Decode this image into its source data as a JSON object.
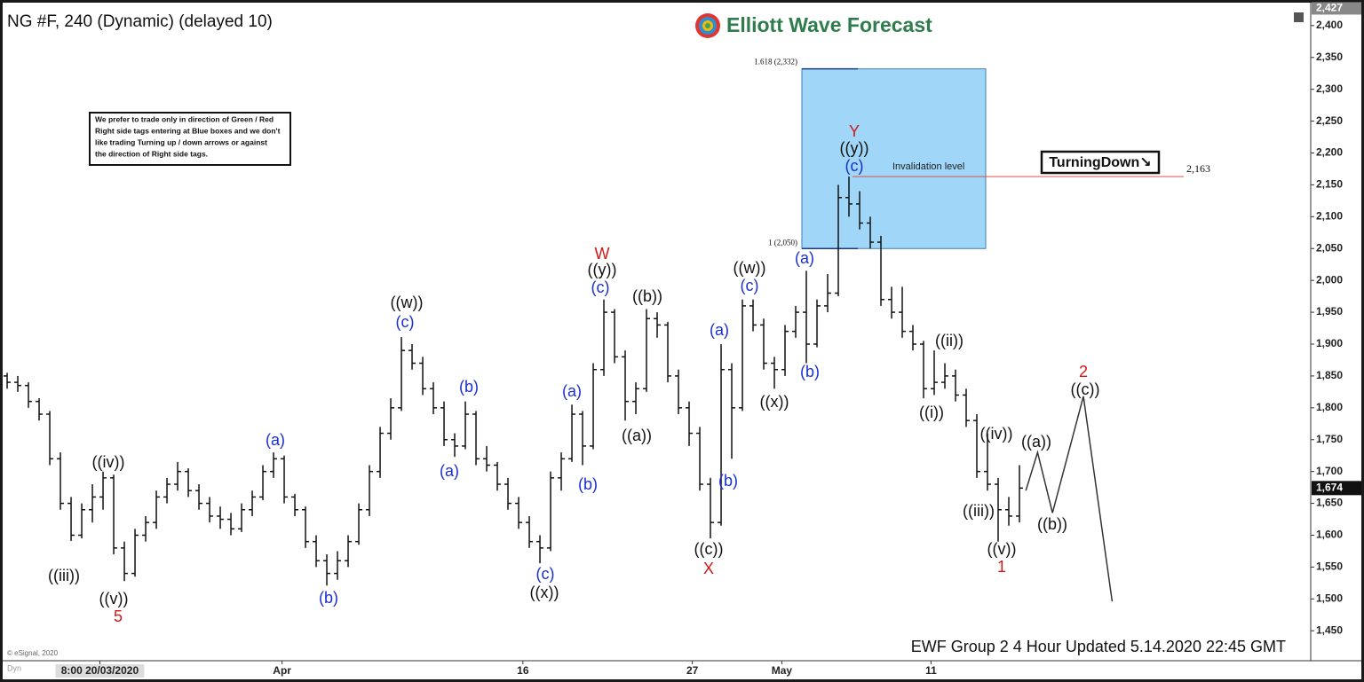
{
  "chart_data": {
    "type": "ohlc",
    "title": "NG #F, 240 (Dynamic) (delayed 10)",
    "brand": "Elliott Wave Forecast",
    "footer": "EWF Group 2 4 Hour Updated 5.14.2020 22:45 GMT",
    "copyright": "© eSignal, 2020",
    "corner_label": "Dyn",
    "note": [
      "We prefer to trade only in direction of Green / Red",
      "Right side tags entering at Blue boxes and we don't",
      "like trading Turning up / down arrows or against",
      "the direction of Right side tags."
    ],
    "bar_color": "#111111",
    "ohlc": [
      [
        1850,
        1855,
        1830,
        1840
      ],
      [
        1840,
        1850,
        1825,
        1835
      ],
      [
        1835,
        1840,
        1800,
        1810
      ],
      [
        1810,
        1815,
        1780,
        1790
      ],
      [
        1790,
        1795,
        1710,
        1720
      ],
      [
        1720,
        1730,
        1640,
        1650
      ],
      [
        1650,
        1660,
        1591,
        1600
      ],
      [
        1600,
        1650,
        1595,
        1640
      ],
      [
        1640,
        1680,
        1620,
        1660
      ],
      [
        1660,
        1700,
        1640,
        1690
      ],
      [
        1690,
        1695,
        1570,
        1580
      ],
      [
        1580,
        1590,
        1528,
        1540
      ],
      [
        1540,
        1610,
        1535,
        1600
      ],
      [
        1600,
        1630,
        1590,
        1620
      ],
      [
        1620,
        1670,
        1610,
        1660
      ],
      [
        1660,
        1690,
        1650,
        1680
      ],
      [
        1680,
        1715,
        1670,
        1700
      ],
      [
        1700,
        1705,
        1660,
        1670
      ],
      [
        1670,
        1680,
        1640,
        1650
      ],
      [
        1650,
        1660,
        1620,
        1630
      ],
      [
        1630,
        1645,
        1610,
        1625
      ],
      [
        1625,
        1635,
        1600,
        1610
      ],
      [
        1610,
        1650,
        1605,
        1640
      ],
      [
        1640,
        1670,
        1630,
        1660
      ],
      [
        1660,
        1710,
        1655,
        1700
      ],
      [
        1700,
        1730,
        1690,
        1720
      ],
      [
        1720,
        1725,
        1650,
        1660
      ],
      [
        1660,
        1665,
        1630,
        1640
      ],
      [
        1640,
        1645,
        1580,
        1590
      ],
      [
        1590,
        1600,
        1550,
        1560
      ],
      [
        1560,
        1570,
        1521,
        1540
      ],
      [
        1540,
        1575,
        1530,
        1560
      ],
      [
        1560,
        1600,
        1550,
        1590
      ],
      [
        1590,
        1650,
        1585,
        1640
      ],
      [
        1640,
        1710,
        1630,
        1700
      ],
      [
        1700,
        1770,
        1690,
        1760
      ],
      [
        1760,
        1815,
        1750,
        1800
      ],
      [
        1800,
        1911,
        1795,
        1890
      ],
      [
        1890,
        1900,
        1860,
        1870
      ],
      [
        1870,
        1880,
        1820,
        1830
      ],
      [
        1830,
        1840,
        1790,
        1800
      ],
      [
        1800,
        1810,
        1740,
        1750
      ],
      [
        1750,
        1760,
        1723,
        1740
      ],
      [
        1740,
        1810,
        1735,
        1790
      ],
      [
        1790,
        1795,
        1710,
        1720
      ],
      [
        1720,
        1740,
        1700,
        1710
      ],
      [
        1710,
        1715,
        1670,
        1680
      ],
      [
        1680,
        1690,
        1640,
        1650
      ],
      [
        1650,
        1660,
        1610,
        1620
      ],
      [
        1620,
        1630,
        1580,
        1590
      ],
      [
        1590,
        1600,
        1556,
        1580
      ],
      [
        1580,
        1700,
        1575,
        1690
      ],
      [
        1690,
        1730,
        1670,
        1720
      ],
      [
        1720,
        1805,
        1715,
        1790
      ],
      [
        1790,
        1795,
        1710,
        1740
      ],
      [
        1740,
        1870,
        1735,
        1860
      ],
      [
        1860,
        1970,
        1850,
        1950
      ],
      [
        1950,
        1955,
        1870,
        1880
      ],
      [
        1880,
        1890,
        1780,
        1810
      ],
      [
        1810,
        1840,
        1790,
        1830
      ],
      [
        1830,
        1955,
        1825,
        1940
      ],
      [
        1940,
        1950,
        1910,
        1930
      ],
      [
        1930,
        1935,
        1840,
        1850
      ],
      [
        1850,
        1860,
        1790,
        1800
      ],
      [
        1800,
        1810,
        1740,
        1760
      ],
      [
        1760,
        1770,
        1670,
        1680
      ],
      [
        1680,
        1690,
        1595,
        1620
      ],
      [
        1620,
        1900,
        1615,
        1860
      ],
      [
        1860,
        1870,
        1720,
        1800
      ],
      [
        1800,
        1970,
        1795,
        1960
      ],
      [
        1960,
        1970,
        1920,
        1930
      ],
      [
        1930,
        1940,
        1860,
        1870
      ],
      [
        1870,
        1880,
        1830,
        1860
      ],
      [
        1860,
        1930,
        1850,
        1920
      ],
      [
        1920,
        1960,
        1910,
        1950
      ],
      [
        1950,
        2015,
        1870,
        1900
      ],
      [
        1900,
        1970,
        1895,
        1960
      ],
      [
        1960,
        2010,
        1950,
        1980
      ],
      [
        1980,
        2150,
        1975,
        2130
      ],
      [
        2130,
        2163,
        2100,
        2120
      ],
      [
        2120,
        2140,
        2080,
        2090
      ],
      [
        2090,
        2100,
        2050,
        2060
      ],
      [
        2060,
        2070,
        1960,
        1970
      ],
      [
        1970,
        1990,
        1940,
        1950
      ],
      [
        1950,
        1990,
        1910,
        1920
      ],
      [
        1920,
        1930,
        1890,
        1900
      ],
      [
        1900,
        1905,
        1815,
        1830
      ],
      [
        1830,
        1890,
        1820,
        1840
      ],
      [
        1840,
        1870,
        1830,
        1850
      ],
      [
        1850,
        1860,
        1810,
        1820
      ],
      [
        1820,
        1830,
        1770,
        1780
      ],
      [
        1780,
        1790,
        1690,
        1700
      ],
      [
        1700,
        1760,
        1670,
        1680
      ],
      [
        1680,
        1690,
        1590,
        1640
      ],
      [
        1640,
        1660,
        1615,
        1630
      ],
      [
        1630,
        1710,
        1620,
        1674
      ]
    ],
    "projection": {
      "x": [
        95.6,
        96.7,
        98.1,
        101,
        103.7
      ],
      "y": [
        1670,
        1730,
        1635,
        1818,
        1496
      ],
      "color": "#333333"
    },
    "xlim": [
      -0.67,
      122.25
    ],
    "xticks": [
      {
        "value": 8.7,
        "label": "8:00 20/03/2020"
      },
      {
        "value": 25.8,
        "label": "Apr"
      },
      {
        "value": 48.4,
        "label": "16"
      },
      {
        "value": 64.3,
        "label": "27"
      },
      {
        "value": 72.7,
        "label": "May"
      },
      {
        "value": 86.7,
        "label": "11"
      }
    ],
    "ylim": [
      1403,
      2429
    ],
    "yticks": [
      {
        "value": 1450,
        "label": "1,450"
      },
      {
        "value": 1500,
        "label": "1,500"
      },
      {
        "value": 1550,
        "label": "1,550"
      },
      {
        "value": 1600,
        "label": "1,600"
      },
      {
        "value": 1650,
        "label": "1,650"
      },
      {
        "value": 1700,
        "label": "1,700"
      },
      {
        "value": 1750,
        "label": "1,750"
      },
      {
        "value": 1800,
        "label": "1,800"
      },
      {
        "value": 1850,
        "label": "1,850"
      },
      {
        "value": 1900,
        "label": "1,900"
      },
      {
        "value": 1950,
        "label": "1,950"
      },
      {
        "value": 2000,
        "label": "2,000"
      },
      {
        "value": 2050,
        "label": "2,050"
      },
      {
        "value": 2100,
        "label": "2,100"
      },
      {
        "value": 2150,
        "label": "2,150"
      },
      {
        "value": 2200,
        "label": "2,200"
      },
      {
        "value": 2250,
        "label": "2,250"
      },
      {
        "value": 2300,
        "label": "2,300"
      },
      {
        "value": 2350,
        "label": "2,350"
      },
      {
        "value": 2400,
        "label": "2,400"
      }
    ],
    "scale_top": {
      "value": 2427,
      "label": "2,427"
    },
    "last_price": {
      "value": 1674,
      "label": "1,674"
    },
    "target_zone": {
      "high": 2332,
      "low": 2050,
      "high_label": "1.618 (2,332)",
      "low_label": "1 (2,050)",
      "color": "#8fd0f8"
    },
    "invalidation": {
      "value": 2163,
      "label": "2,163",
      "text": "Invalidation level",
      "color": "#e05050"
    },
    "turning_tag": "TurningDown↘",
    "labels": [
      {
        "text": "((iii))",
        "color": "#111111"
      },
      {
        "text": "((iv))",
        "color": "#111111"
      },
      {
        "text": "((v))",
        "color": "#111111"
      },
      {
        "text": "5",
        "color": "#d01818"
      },
      {
        "text": "(a)",
        "color": "#1a2fd0"
      },
      {
        "text": "(b)",
        "color": "#1a2fd0"
      },
      {
        "text": "((w))",
        "color": "#111111"
      },
      {
        "text": "(c)",
        "color": "#1a2fd0"
      },
      {
        "text": "(a)",
        "color": "#1a2fd0"
      },
      {
        "text": "(b)",
        "color": "#1a2fd0"
      },
      {
        "text": "(c)",
        "color": "#1a2fd0"
      },
      {
        "text": "((x))",
        "color": "#111111"
      },
      {
        "text": "(a)",
        "color": "#1a2fd0"
      },
      {
        "text": "(b)",
        "color": "#1a2fd0"
      },
      {
        "text": "W",
        "color": "#d01818"
      },
      {
        "text": "((y))",
        "color": "#111111"
      },
      {
        "text": "(c)",
        "color": "#1a2fd0"
      },
      {
        "text": "((b))",
        "color": "#111111"
      },
      {
        "text": "((a))",
        "color": "#111111"
      },
      {
        "text": "((c))",
        "color": "#111111"
      },
      {
        "text": "X",
        "color": "#d01818"
      },
      {
        "text": "(a)",
        "color": "#1a2fd0"
      },
      {
        "text": "(b)",
        "color": "#1a2fd0"
      },
      {
        "text": "((w))",
        "color": "#111111"
      },
      {
        "text": "(c)",
        "color": "#1a2fd0"
      },
      {
        "text": "((x))",
        "color": "#111111"
      },
      {
        "text": "(a)",
        "color": "#1a2fd0"
      },
      {
        "text": "(b)",
        "color": "#1a2fd0"
      },
      {
        "text": "Y",
        "color": "#d01818"
      },
      {
        "text": "((y))",
        "color": "#111111"
      },
      {
        "text": "(c)",
        "color": "#1a2fd0"
      },
      {
        "text": "((i))",
        "color": "#111111"
      },
      {
        "text": "((ii))",
        "color": "#111111"
      },
      {
        "text": "((iii))",
        "color": "#111111"
      },
      {
        "text": "((iv))",
        "color": "#111111"
      },
      {
        "text": "((v))",
        "color": "#111111"
      },
      {
        "text": "1",
        "color": "#d01818"
      },
      {
        "text": "((a))",
        "color": "#111111"
      },
      {
        "text": "((b))",
        "color": "#111111"
      },
      {
        "text": "2",
        "color": "#d01818"
      },
      {
        "text": "((c))",
        "color": "#111111"
      }
    ]
  }
}
